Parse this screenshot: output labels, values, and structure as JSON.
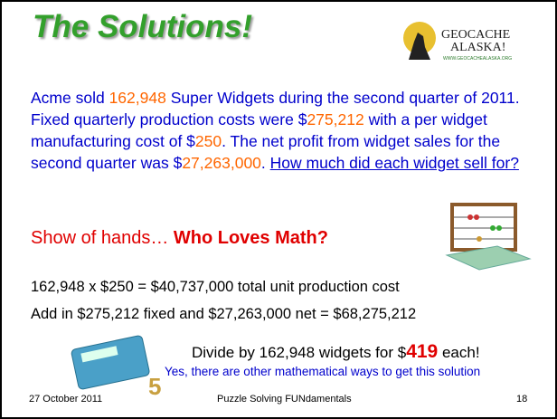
{
  "title": "The Solutions!",
  "logo": {
    "line1": "GEOCACHE",
    "line2": "ALASKA!",
    "url": "WWW.GEOCACHEALASKA.ORG"
  },
  "paragraph": [
    {
      "text": "Acme sold ",
      "color": "#0000cc"
    },
    {
      "text": "162,948",
      "color": "#ff6600"
    },
    {
      "text": " Super Widgets during the second quarter of 2011.  Fixed quarterly production costs were ",
      "color": "#0000cc"
    },
    {
      "text": "$",
      "color": "#0000cc"
    },
    {
      "text": "275,212",
      "color": "#ff6600"
    },
    {
      "text": " with a per widget manufacturing cost of $",
      "color": "#0000cc"
    },
    {
      "text": "250",
      "color": "#ff6600"
    },
    {
      "text": ". The net profit from widget sales for the second quarter was ",
      "color": "#0000cc"
    },
    {
      "text": "$",
      "color": "#0000cc"
    },
    {
      "text": "27,263,000",
      "color": "#ff6600"
    },
    {
      "text": ".  ",
      "color": "#0000cc"
    },
    {
      "text": "How much did each widget sell for?",
      "color": "#0000cc",
      "underline": true
    }
  ],
  "show_of_hands": {
    "lead": "Show of hands… ",
    "emphasis": "Who Loves Math?"
  },
  "lines": [
    "162,948 x $250 = $40,737,000 total unit production cost",
    "Add in $275,212 fixed and $27,263,000 net = $68,275,212"
  ],
  "answer": {
    "before": "Divide by 162,948 widgets for $",
    "value": "419",
    "after": " each!"
  },
  "note": "Yes, there are other mathematical ways to get this solution",
  "footer": {
    "date": "27 October 2011",
    "center": "Puzzle Solving FUNdamentals",
    "page": "18"
  }
}
